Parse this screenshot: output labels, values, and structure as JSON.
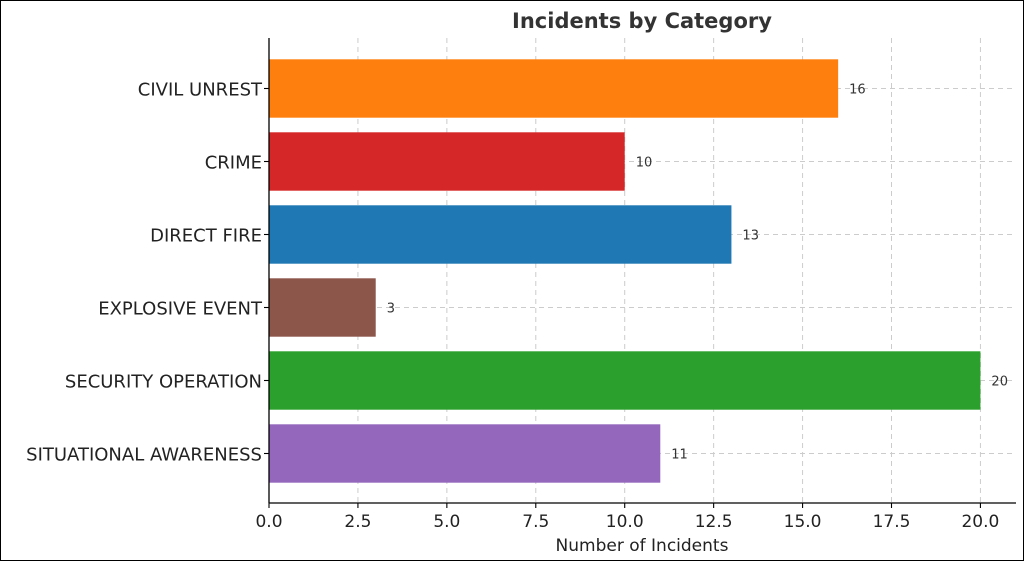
{
  "chart_data": {
    "type": "bar",
    "orientation": "horizontal",
    "title": "Incidents by Category",
    "xlabel": "Number of Incidents",
    "ylabel": "",
    "xlim": [
      0,
      21
    ],
    "xticks": [
      0.0,
      2.5,
      5.0,
      7.5,
      10.0,
      12.5,
      15.0,
      17.5,
      20.0
    ],
    "xtick_labels": [
      "0.0",
      "2.5",
      "5.0",
      "7.5",
      "10.0",
      "12.5",
      "15.0",
      "17.5",
      "20.0"
    ],
    "grid": true,
    "categories": [
      "CIVIL UNREST",
      "CRIME",
      "DIRECT FIRE",
      "EXPLOSIVE EVENT",
      "SECURITY OPERATION",
      "SITUATIONAL AWARENESS"
    ],
    "values": [
      16,
      10,
      13,
      3,
      20,
      11
    ],
    "value_labels": [
      "16",
      "10",
      "13",
      "3",
      "20",
      "11"
    ],
    "colors": [
      "#ff7f0e",
      "#d62728",
      "#1f77b4",
      "#8c564b",
      "#2ca02c",
      "#9467bd"
    ]
  }
}
